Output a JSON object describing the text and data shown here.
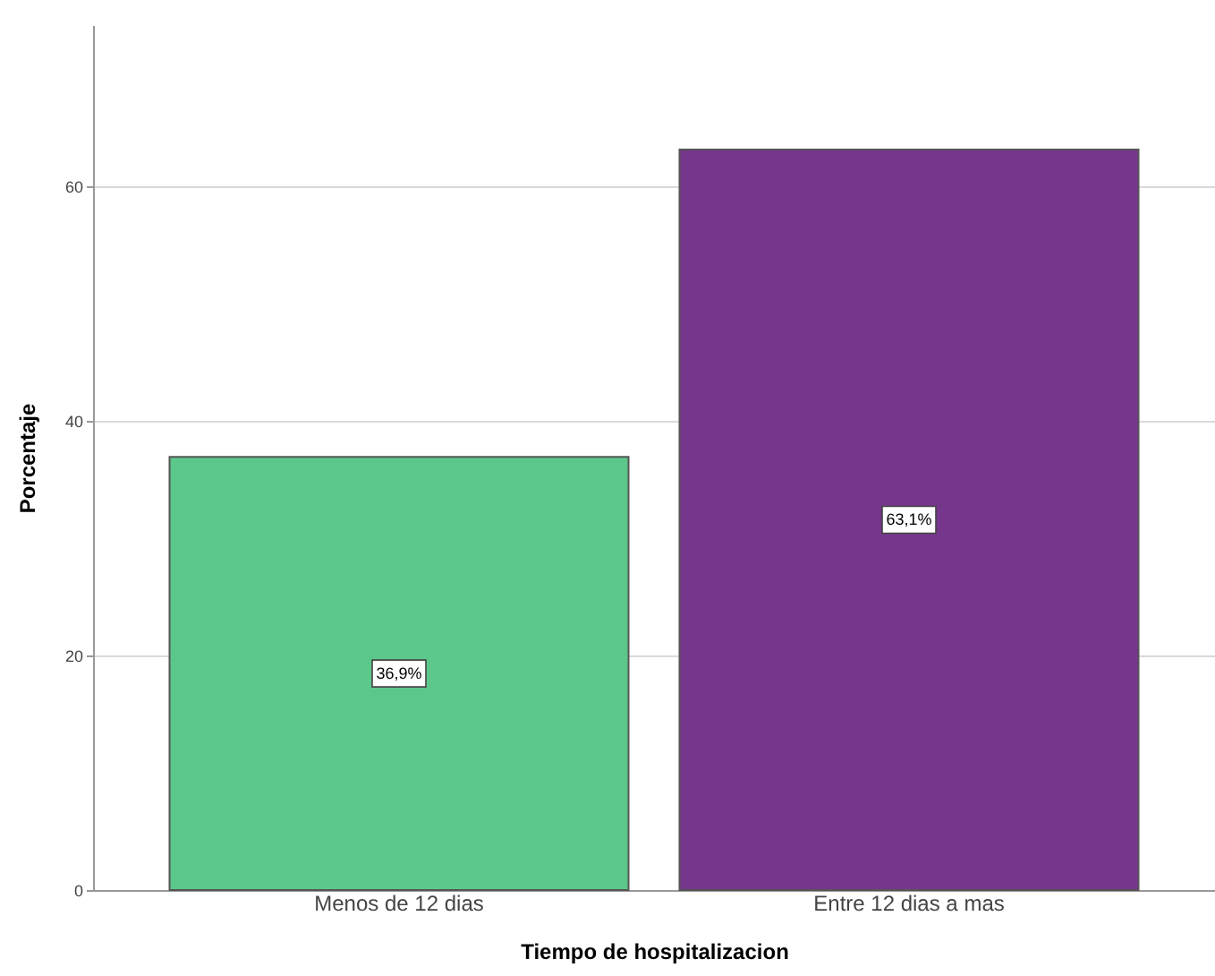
{
  "chart_data": {
    "type": "bar",
    "xlabel": "Tiempo de hospitalizacion",
    "ylabel": "Porcentaje",
    "categories": [
      "Menos de 12 dias",
      "Entre 12 dias a mas"
    ],
    "values": [
      36.9,
      63.1
    ],
    "colors": [
      "#5cc78a",
      "#76368c"
    ],
    "value_labels": [
      "36,9%",
      "63,1%"
    ],
    "ylim": [
      0,
      73.7
    ],
    "yticks": [
      0,
      20,
      40,
      60
    ],
    "grid": "y",
    "legend": false
  }
}
